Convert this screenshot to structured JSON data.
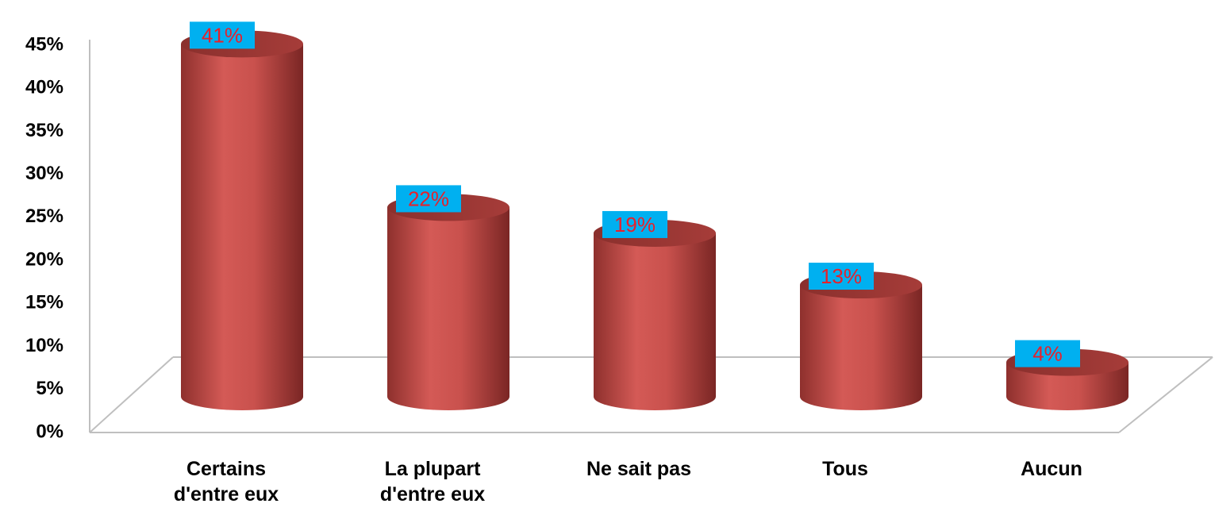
{
  "chart_data": {
    "type": "bar3d",
    "categories": [
      "Certains d'entre eux",
      "La plupart d'entre eux",
      "Ne sait pas",
      "Tous",
      "Aucun"
    ],
    "values": [
      41,
      22,
      19,
      13,
      4
    ],
    "value_labels": [
      "41%",
      "22%",
      "19%",
      "13%",
      "4%"
    ],
    "color": "#c0504d",
    "ylim": [
      0,
      45
    ],
    "yticks": [
      {
        "value": 0,
        "label": "0%"
      },
      {
        "value": 5,
        "label": "5%"
      },
      {
        "value": 10,
        "label": "10%"
      },
      {
        "value": 15,
        "label": "15%"
      },
      {
        "value": 20,
        "label": "20%"
      },
      {
        "value": 25,
        "label": "25%"
      },
      {
        "value": 30,
        "label": "30%"
      },
      {
        "value": 35,
        "label": "35%"
      },
      {
        "value": 40,
        "label": "40%"
      },
      {
        "value": 45,
        "label": "45%"
      }
    ],
    "grid": false
  }
}
